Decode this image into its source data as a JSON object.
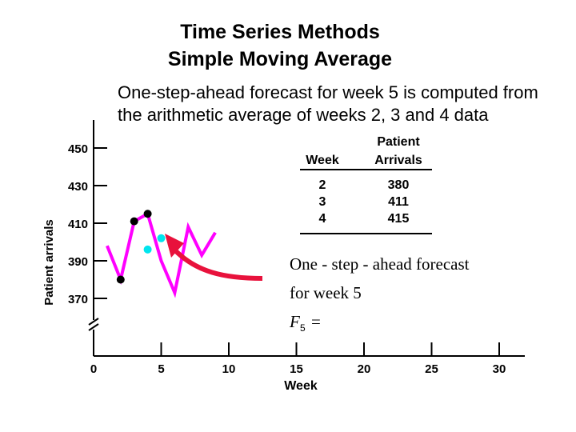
{
  "title": "Time Series Methods",
  "subtitle": "Simple Moving Average",
  "description": "One-step-ahead forecast for week 5 is computed from the arithmetic average of weeks 2, 3 and 4 data",
  "table": {
    "headers": [
      "Week",
      "Patient Arrivals"
    ],
    "header_top": "Patient",
    "header_bottom": "Arrivals",
    "rows": [
      [
        "2",
        "380"
      ],
      [
        "3",
        "411"
      ],
      [
        "4",
        "415"
      ]
    ]
  },
  "formula": {
    "line1": "One - step - ahead forecast",
    "line2": "for week 5",
    "lhs": "F",
    "sub": "5",
    "eq": "="
  },
  "chart_data": {
    "type": "line",
    "xlabel": "Week",
    "ylabel": "Patient arrivals",
    "xlim": [
      0,
      32
    ],
    "ylim": [
      355,
      460
    ],
    "xticks": [
      0,
      5,
      10,
      15,
      20,
      25,
      30
    ],
    "yticks": [
      370,
      390,
      410,
      430,
      450
    ],
    "y_axis_break": true,
    "grid": false,
    "series": [
      {
        "x": [
          1,
          2,
          3,
          4,
          5,
          6,
          7,
          8,
          9
        ],
        "values": [
          398,
          380,
          411,
          415,
          390,
          373,
          408,
          393,
          405
        ],
        "color": "#ff00ff"
      },
      {
        "x": [
          2,
          3,
          4
        ],
        "values": [
          380,
          411,
          415
        ],
        "color": "#000000",
        "style": "markers"
      },
      {
        "x": [
          4,
          5
        ],
        "values": [
          396,
          402
        ],
        "color": "#00e5ee",
        "style": "markers"
      }
    ],
    "arrow_color": "#e8123c"
  }
}
